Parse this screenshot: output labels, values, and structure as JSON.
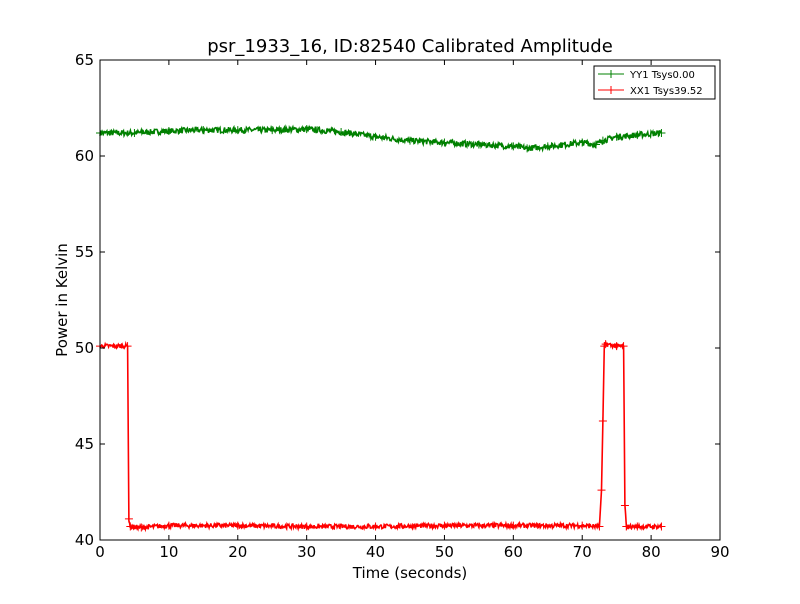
{
  "chart_data": {
    "type": "line",
    "title": "psr_1933_16, ID:82540 Calibrated Amplitude",
    "xlabel": "Time (seconds)",
    "ylabel": "Power in Kelvin",
    "xlim": [
      0,
      90
    ],
    "ylim": [
      40,
      65
    ],
    "xticks": [
      "0",
      "10",
      "20",
      "30",
      "40",
      "50",
      "60",
      "70",
      "80",
      "90"
    ],
    "yticks": [
      "40",
      "45",
      "50",
      "55",
      "60",
      "65"
    ],
    "grid": false,
    "legend_position": "top-right",
    "series": [
      {
        "name": "YY1 Tsys0.00",
        "color": "#008000",
        "marker": "+",
        "noise": 0.15,
        "x": [
          0,
          5,
          10,
          15,
          20,
          25,
          30,
          35,
          40,
          45,
          50,
          55,
          60,
          62,
          65,
          70,
          72,
          73,
          75,
          78,
          81.5
        ],
        "y": [
          61.2,
          61.2,
          61.3,
          61.35,
          61.35,
          61.35,
          61.4,
          61.25,
          61.0,
          60.8,
          60.7,
          60.6,
          60.5,
          60.4,
          60.5,
          60.7,
          60.6,
          60.8,
          61.0,
          61.1,
          61.2
        ]
      },
      {
        "name": "XX1 Tsys39.52",
        "color": "#ff0000",
        "marker": "+",
        "noise": 0.12,
        "x": [
          0,
          4.0,
          4.2,
          4.4,
          6,
          10,
          20,
          30,
          40,
          50,
          60,
          70,
          72.5,
          72.8,
          73.0,
          73.2,
          73.4,
          75,
          76.0,
          76.2,
          76.4,
          78,
          81.5
        ],
        "y": [
          50.1,
          50.1,
          41.1,
          40.7,
          40.65,
          40.75,
          40.75,
          40.7,
          40.7,
          40.75,
          40.75,
          40.75,
          40.7,
          42.6,
          46.2,
          50.1,
          50.2,
          50.1,
          50.1,
          41.8,
          40.7,
          40.7,
          40.7
        ]
      }
    ]
  }
}
